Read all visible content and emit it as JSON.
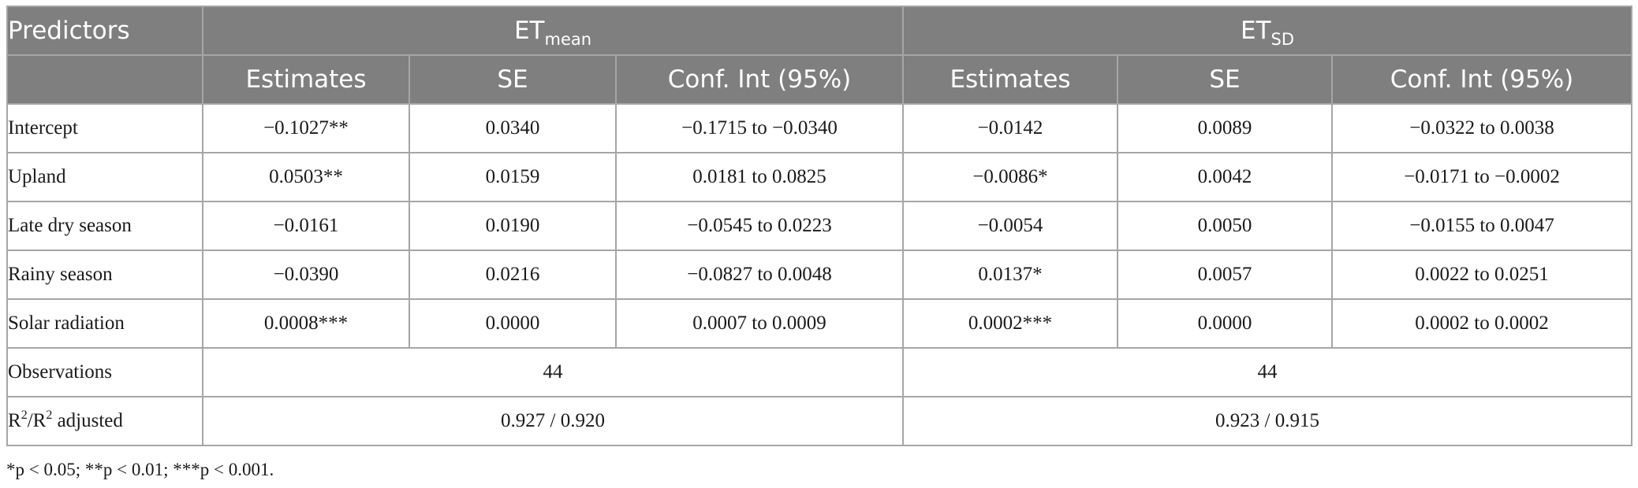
{
  "header": {
    "predictors": "Predictors",
    "group1": {
      "main": "ET",
      "sub": "mean"
    },
    "group2": {
      "main": "ET",
      "sub": "SD"
    },
    "col_estimates": "Estimates",
    "col_se": "SE",
    "col_ci": "Conf. Int (95%)"
  },
  "rows": [
    {
      "label": "Intercept",
      "e1": "−0.1027**",
      "se1": "0.0340",
      "ci1": "−0.1715 to −0.0340",
      "e2": "−0.0142",
      "se2": "0.0089",
      "ci2": "−0.0322 to 0.0038"
    },
    {
      "label": "Upland",
      "e1": "0.0503**",
      "se1": "0.0159",
      "ci1": "0.0181 to 0.0825",
      "e2": "−0.0086*",
      "se2": "0.0042",
      "ci2": "−0.0171 to −0.0002"
    },
    {
      "label": "Late dry season",
      "e1": "−0.0161",
      "se1": "0.0190",
      "ci1": "−0.0545 to 0.0223",
      "e2": "−0.0054",
      "se2": "0.0050",
      "ci2": "−0.0155 to 0.0047"
    },
    {
      "label": "Rainy season",
      "e1": "−0.0390",
      "se1": "0.0216",
      "ci1": "−0.0827 to 0.0048",
      "e2": "0.0137*",
      "se2": "0.0057",
      "ci2": "0.0022 to 0.0251"
    },
    {
      "label": "Solar radiation",
      "e1": "0.0008***",
      "se1": "0.0000",
      "ci1": "0.0007 to 0.0009",
      "e2": "0.0002***",
      "se2": "0.0000",
      "ci2": "0.0002 to 0.0002"
    }
  ],
  "observations": {
    "label": "Observations",
    "v1": "44",
    "v2": "44"
  },
  "r2": {
    "r": "R",
    "sup": "2",
    "slash": "/",
    "adj": " adjusted",
    "v1": "0.927 / 0.920",
    "v2": "0.923 / 0.915"
  },
  "footnote": "*p < 0.05; **p < 0.01; ***p < 0.001."
}
